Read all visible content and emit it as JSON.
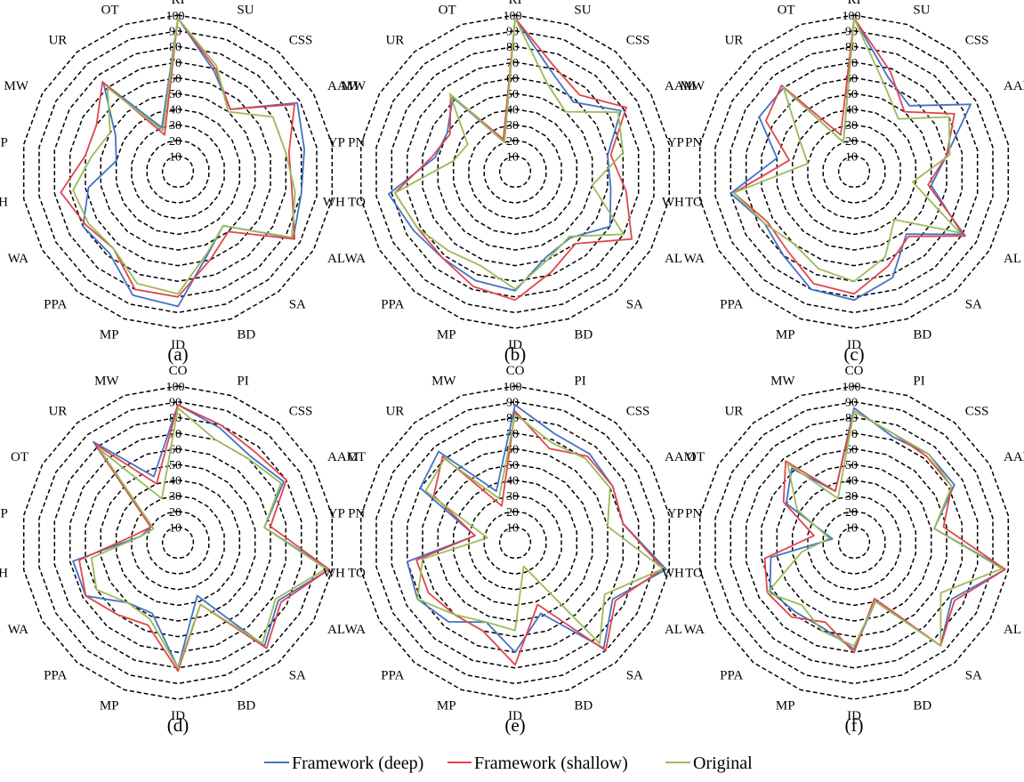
{
  "colors": {
    "Framework (deep)": "#4472c4",
    "Framework (shallow)": "#e0474c",
    "Original": "#9bbb59"
  },
  "legend": [
    "Framework (deep)",
    "Framework (shallow)",
    "Original"
  ],
  "chart_data": [
    {
      "type": "radar",
      "caption": "(a)",
      "rmin": 0,
      "rmax": 100,
      "ticks": [
        10,
        20,
        30,
        40,
        50,
        60,
        70,
        80,
        90,
        100
      ],
      "axes": [
        "RI",
        "SU",
        "CSS",
        "AAM",
        "PN",
        "TO",
        "AL",
        "SA",
        "BD",
        "ID",
        "MP",
        "PPA",
        "WA",
        "WH",
        "YP",
        "MW",
        "UR",
        "OT"
      ],
      "series": [
        {
          "name": "Framework (deep)",
          "values": [
            98,
            68,
            52,
            88,
            82,
            80,
            85,
            45,
            56,
            86,
            84,
            68,
            70,
            58,
            40,
            46,
            74,
            30
          ]
        },
        {
          "name": "Framework (shallow)",
          "values": [
            98,
            70,
            52,
            86,
            72,
            74,
            86,
            50,
            60,
            80,
            80,
            64,
            68,
            76,
            60,
            60,
            75,
            25
          ]
        },
        {
          "name": "Original",
          "values": [
            98,
            72,
            50,
            70,
            70,
            76,
            84,
            45,
            55,
            78,
            76,
            64,
            66,
            68,
            56,
            50,
            70,
            28
          ]
        }
      ]
    },
    {
      "type": "radar",
      "caption": "(b)",
      "rmin": 0,
      "rmax": 100,
      "ticks": [
        10,
        20,
        30,
        40,
        50,
        60,
        70,
        80,
        90,
        100
      ],
      "axes": [
        "RI",
        "SU",
        "CSS",
        "AAM",
        "PN",
        "TO",
        "AL",
        "SA",
        "BD",
        "ID",
        "MP",
        "PPA",
        "WA",
        "WH",
        "YP",
        "MW",
        "UR",
        "OT"
      ],
      "series": [
        {
          "name": "Framework (deep)",
          "values": [
            98,
            68,
            58,
            78,
            60,
            62,
            70,
            55,
            58,
            76,
            74,
            72,
            75,
            82,
            52,
            50,
            62,
            20
          ]
        },
        {
          "name": "Framework (shallow)",
          "values": [
            98,
            72,
            64,
            82,
            62,
            72,
            86,
            60,
            68,
            82,
            78,
            72,
            72,
            78,
            54,
            48,
            64,
            22
          ]
        },
        {
          "name": "Original",
          "values": [
            98,
            60,
            50,
            76,
            70,
            50,
            80,
            54,
            60,
            75,
            64,
            66,
            72,
            78,
            40,
            35,
            65,
            20
          ]
        }
      ]
    },
    {
      "type": "radar",
      "caption": "(c)",
      "rmin": 0,
      "rmax": 100,
      "ticks": [
        10,
        20,
        30,
        40,
        50,
        60,
        70,
        80,
        90,
        100
      ],
      "axes": [
        "RI",
        "SU",
        "CSS",
        "AAM",
        "PN",
        "TO",
        "AL",
        "SA",
        "BD",
        "ID",
        "MP",
        "PPA",
        "WA",
        "WH",
        "YP",
        "MW",
        "UR",
        "OT"
      ],
      "series": [
        {
          "name": "Framework (deep)",
          "values": [
            98,
            64,
            55,
            86,
            60,
            50,
            80,
            52,
            72,
            82,
            80,
            70,
            66,
            80,
            50,
            70,
            70,
            20
          ]
        },
        {
          "name": "Framework (shallow)",
          "values": [
            98,
            68,
            50,
            74,
            60,
            48,
            82,
            54,
            64,
            78,
            76,
            66,
            64,
            78,
            42,
            65,
            72,
            25
          ]
        },
        {
          "name": "Original",
          "values": [
            98,
            58,
            44,
            70,
            62,
            38,
            78,
            40,
            58,
            70,
            66,
            60,
            66,
            78,
            30,
            40,
            70,
            20
          ]
        }
      ]
    },
    {
      "type": "radar",
      "caption": "(d)",
      "rmin": 0,
      "rmax": 100,
      "ticks": [
        10,
        20,
        30,
        40,
        50,
        60,
        70,
        80,
        90,
        100
      ],
      "axes": [
        "CO",
        "PI",
        "CSS",
        "AAM",
        "PN",
        "TO",
        "AL",
        "SA",
        "BD",
        "ID",
        "MP",
        "PPA",
        "WA",
        "WH",
        "YP",
        "OT",
        "UR",
        "MW"
      ],
      "series": [
        {
          "name": "Framework (deep)",
          "values": [
            88,
            78,
            72,
            78,
            56,
            98,
            74,
            86,
            36,
            80,
            48,
            50,
            68,
            68,
            24,
            20,
            84,
            45
          ]
        },
        {
          "name": "Framework (shallow)",
          "values": [
            88,
            80,
            76,
            80,
            60,
            98,
            76,
            88,
            42,
            82,
            56,
            60,
            68,
            64,
            28,
            20,
            82,
            40
          ]
        },
        {
          "name": "Original",
          "values": [
            86,
            70,
            70,
            76,
            56,
            96,
            72,
            84,
            42,
            80,
            52,
            50,
            60,
            56,
            24,
            18,
            78,
            30
          ]
        }
      ]
    },
    {
      "type": "radar",
      "caption": "(e)",
      "rmin": 0,
      "rmax": 100,
      "ticks": [
        10,
        20,
        30,
        40,
        50,
        60,
        70,
        80,
        90,
        100
      ],
      "axes": [
        "CO",
        "PI",
        "CSS",
        "AAM",
        "PN",
        "TO",
        "AL",
        "SA",
        "BD",
        "ID",
        "MP",
        "PPA",
        "WA",
        "WH",
        "YP",
        "OT",
        "UR",
        "MW"
      ],
      "series": [
        {
          "name": "Framework (deep)",
          "values": [
            88,
            74,
            74,
            72,
            70,
            98,
            72,
            88,
            48,
            70,
            54,
            66,
            72,
            70,
            26,
            70,
            76,
            35
          ]
        },
        {
          "name": "Framework (shallow)",
          "values": [
            84,
            64,
            72,
            72,
            70,
            96,
            74,
            90,
            42,
            78,
            60,
            60,
            64,
            64,
            26,
            60,
            72,
            25
          ]
        },
        {
          "name": "Original",
          "values": [
            82,
            68,
            70,
            70,
            60,
            96,
            66,
            84,
            16,
            56,
            54,
            60,
            72,
            60,
            18,
            66,
            70,
            30
          ]
        }
      ]
    },
    {
      "type": "radar",
      "caption": "(f)",
      "rmin": 0,
      "rmax": 100,
      "ticks": [
        10,
        20,
        30,
        40,
        50,
        60,
        70,
        80,
        90,
        100
      ],
      "axes": [
        "CO",
        "PI",
        "CSS",
        "AAM",
        "PN",
        "TO",
        "AL",
        "SA",
        "BD",
        "ID",
        "MP",
        "PPA",
        "WA",
        "WH",
        "YP",
        "OT",
        "UR",
        "MW"
      ],
      "series": [
        {
          "name": "Framework (deep)",
          "values": [
            86,
            72,
            74,
            74,
            52,
            98,
            72,
            86,
            40,
            68,
            58,
            58,
            62,
            54,
            14,
            50,
            62,
            35
          ]
        },
        {
          "name": "Framework (shallow)",
          "values": [
            84,
            74,
            72,
            72,
            58,
            98,
            74,
            86,
            38,
            70,
            54,
            62,
            64,
            58,
            26,
            52,
            68,
            35
          ]
        },
        {
          "name": "Original",
          "values": [
            84,
            74,
            74,
            72,
            52,
            96,
            64,
            86,
            40,
            66,
            60,
            52,
            64,
            34,
            16,
            42,
            66,
            30
          ]
        }
      ]
    }
  ]
}
